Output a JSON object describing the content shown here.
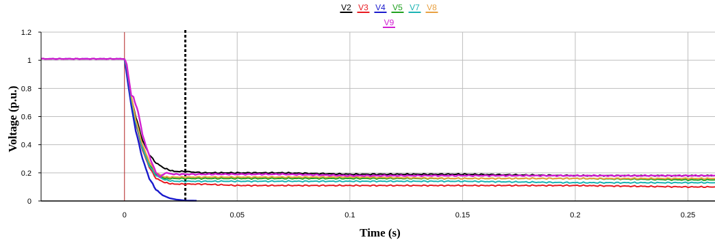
{
  "chart_data": {
    "type": "line",
    "title": "",
    "xlabel": "Time (s)",
    "ylabel": "Voltage (p.u.)",
    "xlim": [
      -0.037,
      0.262
    ],
    "ylim": [
      0,
      1.2
    ],
    "x_ticks": [
      "0",
      "0.05",
      "0.1",
      "0.15",
      "0.2",
      "0.25"
    ],
    "x_tick_values": [
      0,
      0.05,
      0.1,
      0.15,
      0.2,
      0.25
    ],
    "y_ticks": [
      "0",
      "0.2",
      "0.4",
      "0.6",
      "0.8",
      "1",
      "1.2"
    ],
    "y_tick_values": [
      0,
      0.2,
      0.4,
      0.6,
      0.8,
      1.0,
      1.2
    ],
    "grid": true,
    "legend_position": "top-center",
    "fault_marker_x": 0,
    "fault_marker_color": "#b22222",
    "clearing_marker_x": 0.027,
    "series": [
      {
        "name": "V2",
        "color": "#000000",
        "x": [
          -0.037,
          0,
          0.001,
          0.003,
          0.005,
          0.008,
          0.011,
          0.014,
          0.018,
          0.022,
          0.027,
          0.035,
          0.05,
          0.07,
          0.1,
          0.15,
          0.2,
          0.25,
          0.262
        ],
        "y": [
          1.01,
          1.01,
          0.95,
          0.74,
          0.6,
          0.43,
          0.33,
          0.27,
          0.23,
          0.21,
          0.21,
          0.2,
          0.2,
          0.2,
          0.19,
          0.19,
          0.18,
          0.18,
          0.18
        ]
      },
      {
        "name": "V3",
        "color": "#e8191f",
        "x": [
          -0.037,
          0,
          0.001,
          0.003,
          0.005,
          0.008,
          0.011,
          0.014,
          0.018,
          0.022,
          0.027,
          0.035,
          0.05,
          0.07,
          0.1,
          0.15,
          0.2,
          0.25,
          0.262
        ],
        "y": [
          1.01,
          1.01,
          0.95,
          0.72,
          0.55,
          0.36,
          0.24,
          0.16,
          0.13,
          0.12,
          0.12,
          0.12,
          0.11,
          0.11,
          0.11,
          0.11,
          0.11,
          0.1,
          0.1
        ]
      },
      {
        "name": "V4",
        "color": "#1a1acc",
        "x": [
          -0.037,
          0,
          0.001,
          0.003,
          0.005,
          0.008,
          0.011,
          0.014,
          0.017,
          0.02,
          0.023,
          0.027,
          0.032
        ],
        "y": [
          1.01,
          1.01,
          0.9,
          0.68,
          0.5,
          0.3,
          0.16,
          0.08,
          0.04,
          0.02,
          0.01,
          0.003,
          0.002
        ]
      },
      {
        "name": "V5",
        "color": "#1fa01f",
        "x": [
          -0.037,
          0,
          0.001,
          0.003,
          0.005,
          0.008,
          0.011,
          0.014,
          0.018,
          0.022,
          0.027,
          0.035,
          0.05,
          0.07,
          0.1,
          0.15,
          0.2,
          0.25,
          0.262
        ],
        "y": [
          1.01,
          1.01,
          0.95,
          0.73,
          0.56,
          0.38,
          0.26,
          0.19,
          0.16,
          0.16,
          0.16,
          0.16,
          0.16,
          0.16,
          0.16,
          0.16,
          0.16,
          0.15,
          0.15
        ]
      },
      {
        "name": "V7",
        "color": "#1ab3b3",
        "x": [
          -0.037,
          0,
          0.001,
          0.003,
          0.005,
          0.008,
          0.011,
          0.014,
          0.018,
          0.022,
          0.027,
          0.035,
          0.05,
          0.07,
          0.1,
          0.15,
          0.2,
          0.25,
          0.262
        ],
        "y": [
          1.01,
          1.01,
          0.95,
          0.73,
          0.56,
          0.37,
          0.25,
          0.18,
          0.15,
          0.14,
          0.14,
          0.14,
          0.14,
          0.14,
          0.14,
          0.14,
          0.13,
          0.13,
          0.13
        ]
      },
      {
        "name": "V8",
        "color": "#e8a040",
        "x": [
          -0.037,
          0,
          0.001,
          0.003,
          0.005,
          0.008,
          0.011,
          0.014,
          0.018,
          0.022,
          0.027,
          0.035,
          0.05,
          0.07,
          0.1,
          0.15,
          0.2,
          0.25,
          0.262
        ],
        "y": [
          1.01,
          1.01,
          0.96,
          0.75,
          0.58,
          0.4,
          0.28,
          0.2,
          0.17,
          0.17,
          0.17,
          0.17,
          0.17,
          0.17,
          0.17,
          0.16,
          0.16,
          0.16,
          0.16
        ]
      },
      {
        "name": "V9",
        "color": "#d11fd1",
        "x": [
          -0.037,
          0,
          0.001,
          0.003,
          0.004,
          0.005,
          0.006,
          0.008,
          0.011,
          0.014,
          0.016,
          0.018,
          0.022,
          0.027,
          0.035,
          0.05,
          0.07,
          0.1,
          0.15,
          0.2,
          0.25,
          0.262
        ],
        "y": [
          1.01,
          1.01,
          0.97,
          0.75,
          0.74,
          0.68,
          0.64,
          0.47,
          0.32,
          0.2,
          0.17,
          0.2,
          0.19,
          0.19,
          0.19,
          0.19,
          0.19,
          0.18,
          0.18,
          0.18,
          0.18,
          0.18
        ]
      }
    ]
  }
}
